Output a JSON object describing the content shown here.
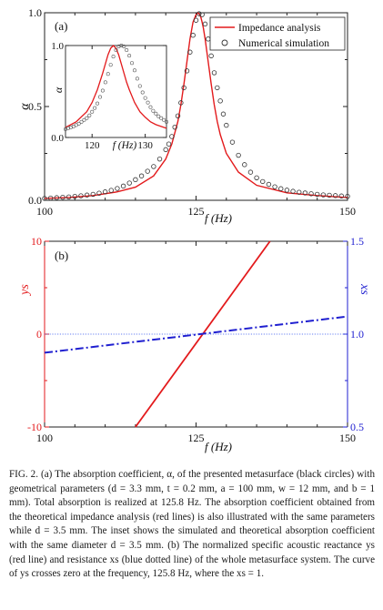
{
  "chart_data": [
    {
      "type": "line",
      "panel_label": "(a)",
      "xlabel": "f (Hz)",
      "ylabel": "α",
      "xlim": [
        100,
        150
      ],
      "ylim": [
        0,
        1.0
      ],
      "xticks": [
        100,
        125,
        150
      ],
      "yticks": [
        {
          "v": 0,
          "label": "0.0"
        },
        {
          "v": 0.5,
          "label": "0.5"
        },
        {
          "v": 1.0,
          "label": "1.0"
        }
      ],
      "legend_position": "top-right",
      "series": [
        {
          "name": "Impedance analysis",
          "style": "line",
          "color": "#e31a1c",
          "x": [
            100,
            104,
            108,
            112,
            115,
            118,
            120,
            121,
            122,
            122.5,
            123,
            123.5,
            124,
            124.5,
            125,
            125.3,
            125.6,
            125.8,
            126,
            126.2,
            126.5,
            127,
            127.5,
            128,
            128.5,
            129,
            130,
            132,
            135,
            140,
            145,
            150
          ],
          "y": [
            0.01,
            0.015,
            0.025,
            0.045,
            0.07,
            0.13,
            0.22,
            0.3,
            0.42,
            0.51,
            0.62,
            0.74,
            0.86,
            0.95,
            0.99,
            1.0,
            0.99,
            0.975,
            0.95,
            0.92,
            0.86,
            0.74,
            0.62,
            0.51,
            0.42,
            0.35,
            0.25,
            0.15,
            0.08,
            0.04,
            0.025,
            0.015
          ]
        },
        {
          "name": "Numerical simulation",
          "style": "circles",
          "color": "#333333",
          "x": [
            100,
            101,
            102,
            103,
            104,
            105,
            106,
            107,
            108,
            109,
            110,
            111,
            112,
            113,
            114,
            115,
            116,
            117,
            118,
            119,
            120,
            120.5,
            121,
            121.5,
            122,
            122.5,
            123,
            123.5,
            124,
            124.5,
            125,
            125.5,
            126,
            126.5,
            127,
            127.5,
            128,
            128.5,
            129,
            129.5,
            130,
            131,
            132,
            133,
            134,
            135,
            136,
            137,
            138,
            139,
            140,
            141,
            142,
            143,
            144,
            145,
            146,
            147,
            148,
            149,
            150
          ],
          "y": [
            0.01,
            0.012,
            0.014,
            0.016,
            0.018,
            0.021,
            0.024,
            0.028,
            0.032,
            0.038,
            0.045,
            0.053,
            0.063,
            0.076,
            0.092,
            0.11,
            0.13,
            0.155,
            0.18,
            0.22,
            0.27,
            0.3,
            0.34,
            0.39,
            0.45,
            0.52,
            0.6,
            0.69,
            0.79,
            0.88,
            0.96,
            0.995,
            0.99,
            0.94,
            0.86,
            0.77,
            0.68,
            0.6,
            0.53,
            0.46,
            0.4,
            0.31,
            0.24,
            0.19,
            0.15,
            0.12,
            0.1,
            0.085,
            0.072,
            0.062,
            0.054,
            0.048,
            0.043,
            0.039,
            0.035,
            0.032,
            0.029,
            0.027,
            0.025,
            0.023,
            0.021
          ]
        }
      ],
      "inset": {
        "xlabel": "f (Hz)",
        "ylabel": "α",
        "xlim": [
          115,
          134
        ],
        "ylim": [
          0,
          1.0
        ],
        "xticks": [
          120,
          130
        ],
        "yticks": [
          {
            "v": 0,
            "label": "0.0"
          },
          {
            "v": 1.0,
            "label": "1.0"
          }
        ],
        "series": [
          {
            "name": "Impedance analysis",
            "style": "line",
            "color": "#e31a1c",
            "x": [
              115,
              117,
              119,
              120,
              121,
              122,
              122.5,
              123,
              123.5,
              124,
              124.5,
              125,
              125.5,
              126,
              126.5,
              127,
              128,
              129,
              130,
              131,
              132,
              133,
              134
            ],
            "y": [
              0.11,
              0.17,
              0.28,
              0.38,
              0.52,
              0.7,
              0.8,
              0.9,
              0.97,
              1.0,
              0.97,
              0.9,
              0.8,
              0.7,
              0.6,
              0.52,
              0.38,
              0.28,
              0.22,
              0.17,
              0.14,
              0.12,
              0.1
            ]
          },
          {
            "name": "Numerical simulation",
            "style": "circles",
            "color": "#555555",
            "x": [
              115,
              115.5,
              116,
              116.5,
              117,
              117.5,
              118,
              118.5,
              119,
              119.5,
              120,
              120.5,
              121,
              121.5,
              122,
              122.5,
              123,
              123.5,
              124,
              124.5,
              125,
              125.5,
              126,
              126.5,
              127,
              127.5,
              128,
              128.5,
              129,
              129.5,
              130,
              130.5,
              131,
              131.5,
              132,
              132.5,
              133,
              133.5,
              134
            ],
            "y": [
              0.09,
              0.1,
              0.11,
              0.12,
              0.135,
              0.15,
              0.17,
              0.19,
              0.21,
              0.24,
              0.28,
              0.32,
              0.37,
              0.44,
              0.51,
              0.6,
              0.69,
              0.79,
              0.88,
              0.95,
              0.99,
              1.0,
              0.99,
              0.95,
              0.89,
              0.81,
              0.73,
              0.64,
              0.56,
              0.49,
              0.43,
              0.38,
              0.33,
              0.29,
              0.26,
              0.23,
              0.21,
              0.19,
              0.17
            ]
          }
        ]
      }
    },
    {
      "type": "line",
      "panel_label": "(b)",
      "xlabel": "f (Hz)",
      "ylabel_left": "ys",
      "ylabel_right": "xs",
      "xlim": [
        100,
        150
      ],
      "ylim_left": [
        -10,
        10
      ],
      "ylim_right": [
        0.5,
        1.5
      ],
      "xticks": [
        100,
        125,
        150
      ],
      "yticks_left": [
        {
          "v": -10,
          "label": "-10"
        },
        {
          "v": 0,
          "label": "0"
        },
        {
          "v": 10,
          "label": "10"
        }
      ],
      "yticks_right": [
        {
          "v": 0.5,
          "label": "0.5"
        },
        {
          "v": 1.0,
          "label": "1.0"
        },
        {
          "v": 1.5,
          "label": "1.5"
        }
      ],
      "reference_line": {
        "axis": "right",
        "y": 1.0,
        "style": "dotted",
        "color": "#3355ee"
      },
      "series": [
        {
          "name": "ys",
          "axis": "left",
          "style": "solid",
          "color": "#e31a1c",
          "x": [
            115,
            137.2
          ],
          "y": [
            -10,
            10
          ]
        },
        {
          "name": "xs",
          "axis": "right",
          "style": "dash-dot",
          "color": "#1f1fd0",
          "x": [
            100,
            150
          ],
          "y": [
            0.9,
            1.095
          ]
        }
      ]
    }
  ],
  "caption": "FIG. 2. (a) The absorption coefficient, α, of the presented metasurface (black circles) with geometrical parameters (d = 3.3 mm, t = 0.2 mm, a = 100 mm, w = 12 mm, and b = 1 mm). Total absorption is realized at 125.8 Hz. The absorption coefficient obtained from the theoretical impedance analysis (red lines) is also illustrated with the same parameters while d = 3.5 mm. The inset shows the simulated and theoretical absorption coefficient with the same diameter d = 3.5 mm. (b) The normalized specific acoustic reactance ys (red line) and resistance xs (blue dotted line) of the whole metasurface system. The curve of ys crosses zero at the frequency, 125.8 Hz, where the xs = 1."
}
